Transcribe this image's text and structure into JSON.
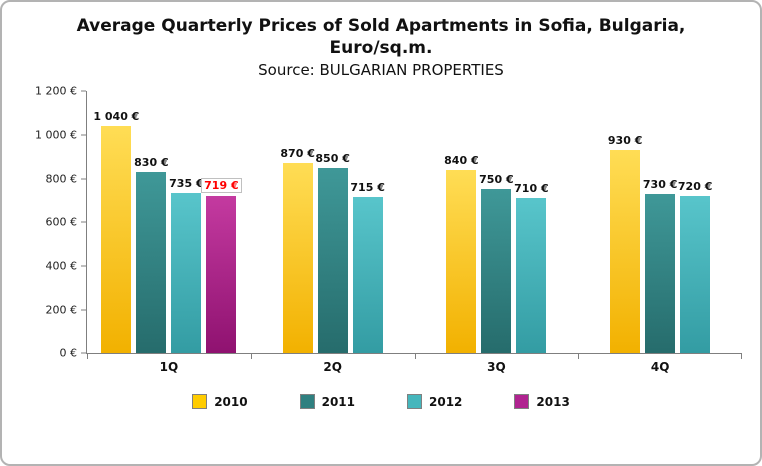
{
  "header": {
    "title_line1": "Average Quarterly Prices of Sold Apartments in Sofia, Bulgaria,",
    "title_line2": "Euro/sq.m.",
    "subtitle": "Source: BULGARIAN PROPERTIES"
  },
  "chart_data": {
    "type": "bar",
    "title": "Average Quarterly Prices of Sold Apartments in Sofia, Bulgaria, Euro/sq.m.",
    "subtitle": "Source: BULGARIAN PROPERTIES",
    "categories": [
      "1Q",
      "2Q",
      "3Q",
      "4Q"
    ],
    "ylim": [
      0,
      1200
    ],
    "grid": false,
    "legend_position": "bottom",
    "y_ticks": [
      {
        "value": 1200,
        "label": "1 200 €"
      },
      {
        "value": 1000,
        "label": "1 000 €"
      },
      {
        "value": 800,
        "label": "800 €"
      },
      {
        "value": 600,
        "label": "600 €"
      },
      {
        "value": 400,
        "label": "400 €"
      },
      {
        "value": 200,
        "label": "200 €"
      },
      {
        "value": 0,
        "label": "0 €"
      }
    ],
    "series": [
      {
        "name": "2010",
        "legend_color": "#FFCC00",
        "color_top": "#FFDD55",
        "color_bottom": "#F2B100",
        "values": [
          1040,
          870,
          840,
          930
        ],
        "labels": [
          "1 040 €",
          "870 €",
          "840 €",
          "930 €"
        ]
      },
      {
        "name": "2011",
        "legend_color": "#2F8080",
        "color_top": "#3F9898",
        "color_bottom": "#266C6C",
        "values": [
          830,
          850,
          750,
          730
        ],
        "labels": [
          "830 €",
          "850 €",
          "750 €",
          "730 €"
        ]
      },
      {
        "name": "2012",
        "legend_color": "#45B6BC",
        "color_top": "#58C5CB",
        "color_bottom": "#339CA3",
        "values": [
          735,
          715,
          710,
          720
        ],
        "labels": [
          "735 €",
          "715 €",
          "710 €",
          "720 €"
        ]
      },
      {
        "name": "2013",
        "legend_color": "#B02390",
        "color_top": "#C43AA0",
        "color_bottom": "#8F1270",
        "values": [
          719,
          null,
          null,
          null
        ],
        "labels": [
          "719 €",
          null,
          null,
          null
        ],
        "label_color": "#FF0000",
        "label_box": true
      }
    ]
  }
}
